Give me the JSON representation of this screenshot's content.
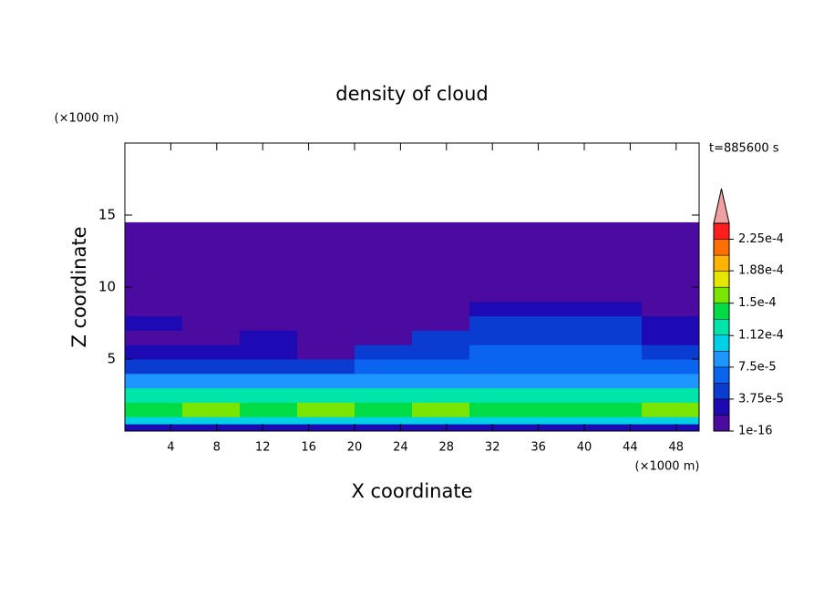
{
  "chart_data": {
    "type": "contour",
    "title": "density of cloud",
    "x_label": "X coordinate",
    "y_label": "Z coordinate",
    "x_unit": "(×1000 m)",
    "y_unit": "(×1000 m)",
    "time_label": "t=885600 s",
    "xlim": [
      0,
      50
    ],
    "ylim": [
      0,
      20
    ],
    "xticks": [
      4,
      8,
      12,
      16,
      20,
      24,
      28,
      32,
      36,
      40,
      44,
      48
    ],
    "yticks": [
      5,
      10,
      15
    ],
    "x_edges": [
      0,
      5,
      10,
      15,
      20,
      25,
      30,
      35,
      40,
      45,
      50
    ],
    "y_edges": [
      0,
      0.5,
      1,
      2,
      3,
      4,
      5,
      6,
      7,
      8,
      9,
      14.5
    ],
    "z": [
      [
        2e-05,
        2e-05,
        2e-05,
        2e-05,
        2e-05,
        2e-05,
        2e-05,
        2e-05,
        2e-05,
        2e-05
      ],
      [
        0.00011,
        0.00011,
        0.00011,
        0.00011,
        0.00011,
        0.00011,
        0.00011,
        0.00011,
        0.00011,
        0.00011
      ],
      [
        0.00014,
        0.00015,
        0.000145,
        0.00015,
        0.000145,
        0.00015,
        0.000145,
        0.00014,
        0.000145,
        0.00015
      ],
      [
        0.00012,
        0.00012,
        0.000115,
        0.00012,
        0.00012,
        0.00012,
        0.000115,
        0.00012,
        0.00012,
        0.00012
      ],
      [
        8.5e-05,
        8.5e-05,
        8e-05,
        8.5e-05,
        8.5e-05,
        9e-05,
        8.5e-05,
        8.5e-05,
        8.5e-05,
        8.5e-05
      ],
      [
        5e-05,
        5e-05,
        5e-05,
        5.5e-05,
        6e-05,
        6e-05,
        6e-05,
        6e-05,
        6e-05,
        6e-05
      ],
      [
        2.5e-05,
        2.5e-05,
        2.5e-05,
        1e-16,
        4e-05,
        5.5e-05,
        6e-05,
        6e-05,
        6e-05,
        5.5e-05
      ],
      [
        1e-16,
        1e-16,
        2e-05,
        1e-16,
        1e-16,
        4e-05,
        5e-05,
        5.5e-05,
        4e-05,
        2e-05
      ],
      [
        2e-05,
        1e-16,
        1e-16,
        1e-16,
        1e-16,
        1e-16,
        4e-05,
        4.5e-05,
        4e-05,
        3e-05
      ],
      [
        1e-16,
        1e-16,
        1e-16,
        1e-16,
        1e-16,
        1e-16,
        3e-05,
        3e-05,
        3e-05,
        1e-16
      ],
      [
        1e-16,
        1e-16,
        1e-16,
        1e-16,
        1e-16,
        1e-16,
        1e-16,
        1e-16,
        1e-16,
        1e-16
      ]
    ],
    "colorbar": {
      "levels": [
        1e-16,
        1.875e-05,
        3.75e-05,
        5.625e-05,
        7.5e-05,
        9.375e-05,
        0.0001125,
        0.00013125,
        0.00015,
        0.00016875,
        0.0001875,
        0.00020625,
        0.000225,
        0.00024375
      ],
      "colors": [
        "#4b0aa0",
        "#1e0ab4",
        "#0a3cd2",
        "#0a64f0",
        "#1e96ff",
        "#00d2e6",
        "#00e6aa",
        "#00dc46",
        "#78e600",
        "#e6e600",
        "#ffb400",
        "#ff6e00",
        "#ff1e1e"
      ],
      "extend_color": "#f0a0a0",
      "ticks": [
        1e-16,
        {
          "value": 3.75e-05,
          "label": "3.75e-5"
        },
        {
          "value": 7.5e-05,
          "label": "7.5e-5"
        },
        {
          "value": 0.000112,
          "label": "1.12e-4"
        },
        {
          "value": 0.00015,
          "label": "1.5e-4"
        },
        {
          "value": 0.000188,
          "label": "1.88e-4"
        },
        {
          "value": 0.000225,
          "label": "2.25e-4"
        }
      ]
    }
  }
}
